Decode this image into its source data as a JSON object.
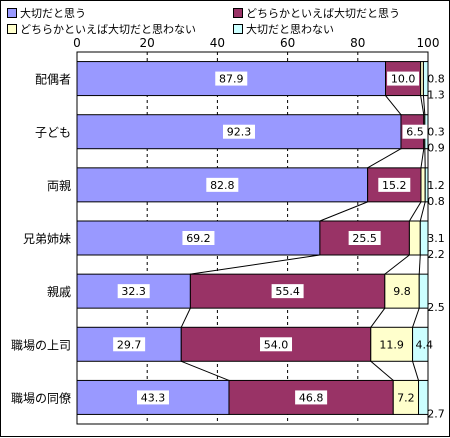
{
  "chart_data": {
    "type": "bar",
    "orientation": "horizontal",
    "stacked": true,
    "categories": [
      "配偶者",
      "子ども",
      "両親",
      "兄弟姉妹",
      "親戚",
      "職場の上司",
      "職場の同僚"
    ],
    "series": [
      {
        "name": "大切だと思う",
        "color": "#9999ff",
        "values": [
          87.9,
          92.3,
          82.8,
          69.2,
          32.3,
          29.7,
          43.3
        ]
      },
      {
        "name": "どちらかといえば大切だと思う",
        "color": "#993366",
        "values": [
          10.0,
          6.5,
          15.2,
          25.5,
          55.4,
          54.0,
          46.8
        ]
      },
      {
        "name": "どちらかといえば大切だと思わない",
        "color": "#ffffcc",
        "values": [
          0.8,
          0.3,
          1.2,
          3.1,
          9.8,
          11.9,
          7.2
        ]
      },
      {
        "name": "大切だと思わない",
        "color": "#ccffff",
        "values": [
          1.3,
          0.9,
          0.8,
          2.2,
          2.5,
          4.4,
          2.7
        ]
      }
    ],
    "labels": [
      [
        "87.9",
        "10.0",
        "0.8",
        "1.3"
      ],
      [
        "92.3",
        "6.5",
        "0.3",
        "0.9"
      ],
      [
        "82.8",
        "15.2",
        "1.2",
        "0.8"
      ],
      [
        "69.2",
        "25.5",
        "3.1",
        "2.2"
      ],
      [
        "32.3",
        "55.4",
        "9.8",
        "2.5"
      ],
      [
        "29.7",
        "54.0",
        "11.9",
        "4.4"
      ],
      [
        "43.3",
        "46.8",
        "7.2",
        "2.7"
      ]
    ],
    "xlim": [
      0,
      100
    ],
    "xticks": [
      "0",
      "20",
      "40",
      "60",
      "80",
      "100"
    ],
    "grid": "dashed vertical",
    "series_lines": true,
    "legend_position": "top"
  }
}
